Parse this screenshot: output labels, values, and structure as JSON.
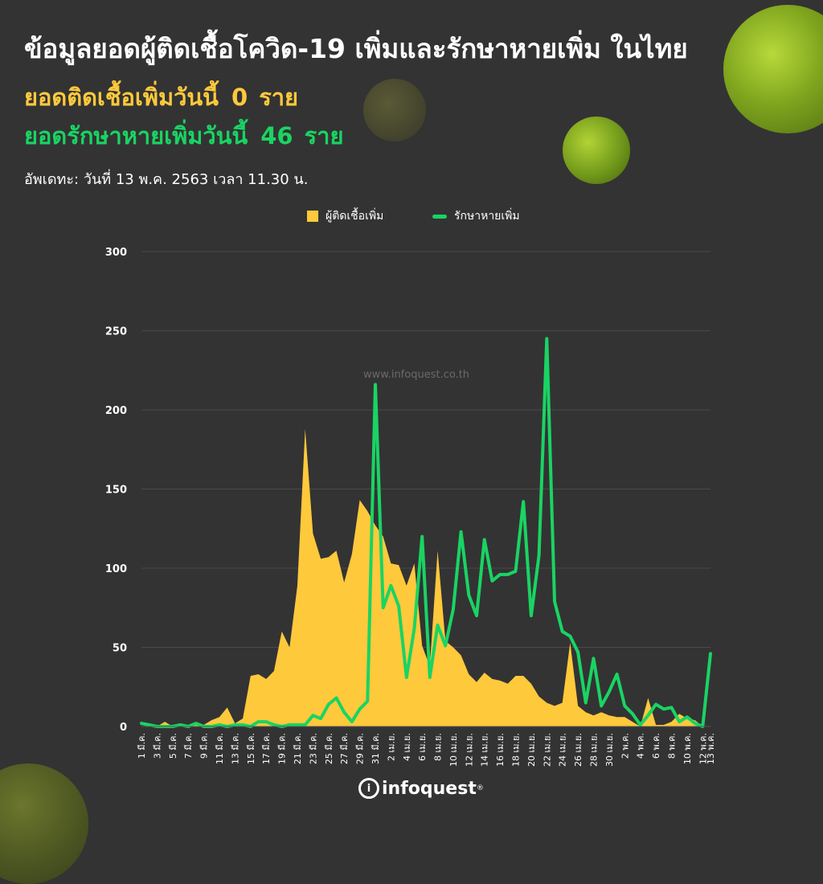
{
  "header": {
    "title": "ข้อมูลยอดผู้ติดเชื้อโควิด-19 เพิ่มและรักษาหายเพิ่ม ในไทย",
    "new_cases_label": "ยอดติดเชื้อเพิ่มวันนี้",
    "new_cases_value": "0",
    "new_cases_unit": "ราย",
    "recovered_label": "ยอดรักษาหายเพิ่มวันนี้",
    "recovered_value": "46",
    "recovered_unit": "ราย",
    "updated": "อัพเดทะ: วันที่  13 พ.ค. 2563 เวลา 11.30 น."
  },
  "watermark": "www.infoquest.co.th",
  "footer": {
    "logo_text": "infoquest",
    "logo_mark": "i",
    "logo_sup": "®"
  },
  "colors": {
    "background": "#333333",
    "new_cases": "#ffc93c",
    "recovered": "#19d463"
  },
  "chart_data": {
    "type": "area",
    "ylim": [
      0,
      300
    ],
    "yticks": [
      0,
      50,
      100,
      150,
      200,
      250,
      300
    ],
    "grid": true,
    "legend": "top-center",
    "xtick_labels": [
      "1 มี.ค.",
      "3 มี.ค.",
      "5 มี.ค.",
      "7 มี.ค.",
      "9 มี.ค.",
      "11 มี.ค.",
      "13 มี.ค.",
      "15 มี.ค.",
      "17 มี.ค.",
      "19 มี.ค.",
      "21 มี.ค.",
      "23 มี.ค.",
      "25 มี.ค.",
      "27 มี.ค.",
      "29 มี.ค.",
      "31 มี.ค.",
      "2 เม.ย.",
      "4 เม.ย.",
      "6 เม.ย.",
      "8 เม.ย.",
      "10 เม.ย.",
      "12 เม.ย.",
      "14 เม.ย.",
      "16 เม.ย.",
      "18 เม.ย.",
      "20 เม.ย.",
      "22 เม.ย.",
      "24 เม.ย.",
      "26 เม.ย.",
      "28 เม.ย.",
      "30 เม.ย.",
      "2 พ.ค.",
      "4 พ.ค.",
      "6 พ.ค.",
      "8 พ.ค.",
      "10 พ.ค.",
      "12 พ.ค.",
      "13 พ.ค."
    ],
    "series": [
      {
        "name": "ผู้ติดเชื้อเพิ่ม",
        "type": "area",
        "values": [
          0,
          0,
          0,
          3,
          0,
          0,
          1,
          1,
          1,
          4,
          6,
          12,
          2,
          5,
          32,
          33,
          30,
          35,
          60,
          50,
          89,
          188,
          122,
          106,
          107,
          111,
          91,
          109,
          143,
          136,
          127,
          120,
          103,
          102,
          89,
          103,
          51,
          38,
          111,
          54,
          50,
          45,
          33,
          28,
          34,
          30,
          29,
          27,
          32,
          32,
          27,
          19,
          15,
          13,
          15,
          53,
          13,
          9,
          7,
          9,
          7,
          6,
          6,
          3,
          0,
          18,
          1,
          1,
          3,
          8,
          5,
          4,
          0,
          0
        ]
      },
      {
        "name": "รักษาหายเพิ่ม",
        "type": "line",
        "values": [
          2,
          1,
          0,
          0,
          0,
          1,
          0,
          2,
          0,
          0,
          1,
          0,
          1,
          1,
          0,
          3,
          3,
          1,
          0,
          1,
          1,
          1,
          7,
          5,
          14,
          18,
          9,
          3,
          11,
          16,
          216,
          75,
          89,
          76,
          31,
          62,
          120,
          31,
          64,
          51,
          74,
          123,
          83,
          70,
          118,
          92,
          96,
          96,
          98,
          142,
          70,
          108,
          245,
          79,
          60,
          57,
          47,
          15,
          43,
          13,
          22,
          33,
          13,
          8,
          1,
          7,
          14,
          11,
          12,
          3,
          6,
          2,
          0,
          46
        ]
      }
    ]
  }
}
